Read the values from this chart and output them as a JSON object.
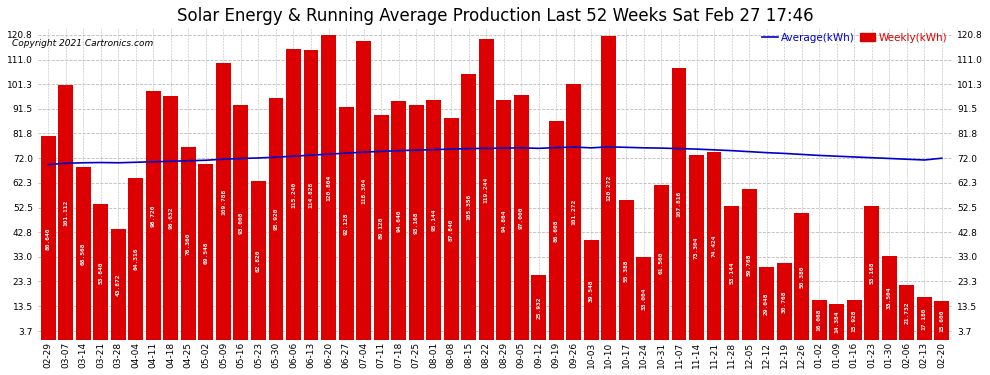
{
  "title": "Solar Energy & Running Average Production Last 52 Weeks Sat Feb 27 17:46",
  "copyright": "Copyright 2021 Cartronics.com",
  "legend_avg": "Average(kWh)",
  "legend_weekly": "Weekly(kWh)",
  "categories": [
    "02-29",
    "03-07",
    "03-14",
    "03-21",
    "03-28",
    "04-04",
    "04-11",
    "04-18",
    "04-25",
    "05-02",
    "05-09",
    "05-16",
    "05-23",
    "05-30",
    "06-06",
    "06-13",
    "06-20",
    "06-27",
    "07-04",
    "07-11",
    "07-18",
    "07-25",
    "08-01",
    "08-08",
    "08-15",
    "08-22",
    "08-29",
    "09-05",
    "09-12",
    "09-19",
    "09-26",
    "10-03",
    "10-10",
    "10-17",
    "10-24",
    "10-31",
    "11-07",
    "11-14",
    "11-21",
    "11-28",
    "12-05",
    "12-12",
    "12-19",
    "12-26",
    "01-02",
    "01-09",
    "01-16",
    "01-23",
    "01-30",
    "02-06",
    "02-13",
    "02-20"
  ],
  "weekly_values": [
    80.64,
    101.112,
    68.568,
    53.84,
    43.872,
    64.316,
    98.72,
    96.632,
    76.36,
    69.548,
    109.788,
    93.008,
    62.82,
    95.92,
    115.24,
    114.828,
    120.804,
    92.128,
    118.304,
    89.12,
    94.64,
    93.168,
    95.144,
    87.84,
    105.356,
    119.244,
    94.864,
    97.0,
    25.932,
    86.608,
    101.272,
    39.548,
    120.272,
    55.388,
    33.004,
    61.56,
    107.816,
    73.304,
    74.424,
    53.144,
    59.768,
    29.048,
    30.768,
    50.38,
    16.068,
    14.384,
    15.928,
    53.168,
    33.504,
    21.732,
    17.18,
    15.6
  ],
  "avg_values": [
    69.5,
    70.0,
    70.2,
    70.3,
    70.2,
    70.4,
    70.6,
    70.8,
    71.0,
    71.2,
    71.6,
    71.9,
    72.1,
    72.4,
    72.8,
    73.2,
    73.6,
    74.0,
    74.4,
    74.7,
    75.0,
    75.2,
    75.4,
    75.6,
    75.8,
    75.9,
    76.0,
    76.1,
    75.9,
    76.2,
    76.4,
    76.1,
    76.5,
    76.3,
    76.1,
    76.0,
    75.8,
    75.6,
    75.3,
    75.0,
    74.6,
    74.2,
    73.9,
    73.5,
    73.1,
    72.8,
    72.5,
    72.2,
    71.9,
    71.6,
    71.3,
    72.0
  ],
  "bar_color": "#dd0000",
  "line_color": "#0000cc",
  "bg_color": "#ffffff",
  "grid_color": "#bbbbbb",
  "yticks": [
    3.7,
    13.5,
    23.3,
    33.0,
    42.8,
    52.5,
    62.3,
    72.0,
    81.8,
    91.5,
    101.3,
    111.0,
    120.8
  ],
  "ymax": 123.5,
  "title_fontsize": 12,
  "copyright_fontsize": 6.5,
  "tick_fontsize": 6.5,
  "bar_label_fontsize": 4.5,
  "legend_fontsize": 7.5
}
